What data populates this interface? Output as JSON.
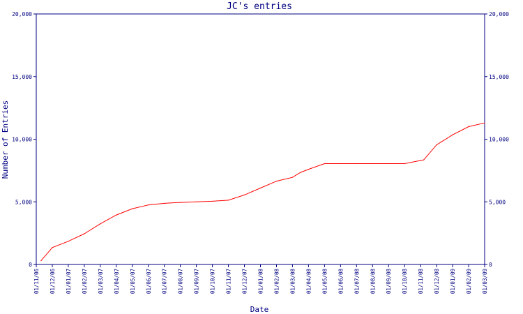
{
  "chart_data": {
    "type": "line",
    "title": "JC's entries",
    "xlabel": "Date",
    "ylabel": "Number of Entries",
    "ylim": [
      0,
      20000
    ],
    "y_ticks": [
      0,
      5000,
      10000,
      15000,
      20000
    ],
    "y_tick_labels": [
      "0",
      "5,000",
      "10,000",
      "15,000",
      "20,000"
    ],
    "right_axis_ticks": true,
    "grid": false,
    "categories": [
      "01/11/06",
      "01/12/06",
      "01/01/07",
      "01/02/07",
      "01/03/07",
      "01/04/07",
      "01/05/07",
      "01/06/07",
      "01/07/07",
      "01/08/07",
      "01/09/07",
      "01/10/07",
      "01/11/07",
      "01/12/07",
      "01/01/08",
      "01/02/08",
      "01/03/08",
      "01/04/08",
      "01/05/08",
      "01/06/08",
      "01/07/08",
      "01/08/08",
      "01/09/08",
      "01/10/08",
      "01/11/08",
      "01/12/08",
      "01/01/09",
      "01/02/09",
      "01/03/09"
    ],
    "series": [
      {
        "color": "#ff0000",
        "points": [
          [
            0.3,
            300
          ],
          [
            1.0,
            1350
          ],
          [
            2.0,
            1850
          ],
          [
            3.0,
            2450
          ],
          [
            4.0,
            3250
          ],
          [
            5.0,
            3950
          ],
          [
            6.0,
            4450
          ],
          [
            7.0,
            4750
          ],
          [
            8.0,
            4880
          ],
          [
            9.0,
            4950
          ],
          [
            10.0,
            5000
          ],
          [
            11.0,
            5050
          ],
          [
            12.0,
            5130
          ],
          [
            13.0,
            5550
          ],
          [
            14.0,
            6100
          ],
          [
            15.0,
            6650
          ],
          [
            16.0,
            6950
          ],
          [
            16.5,
            7350
          ],
          [
            17.0,
            7600
          ],
          [
            18.0,
            8050
          ],
          [
            19.0,
            8050
          ],
          [
            20.0,
            8050
          ],
          [
            21.0,
            8050
          ],
          [
            22.0,
            8050
          ],
          [
            23.0,
            8050
          ],
          [
            24.0,
            8300
          ],
          [
            24.2,
            8350
          ],
          [
            25.0,
            9550
          ],
          [
            26.0,
            10350
          ],
          [
            27.0,
            11000
          ],
          [
            28.0,
            11300
          ]
        ]
      }
    ]
  }
}
